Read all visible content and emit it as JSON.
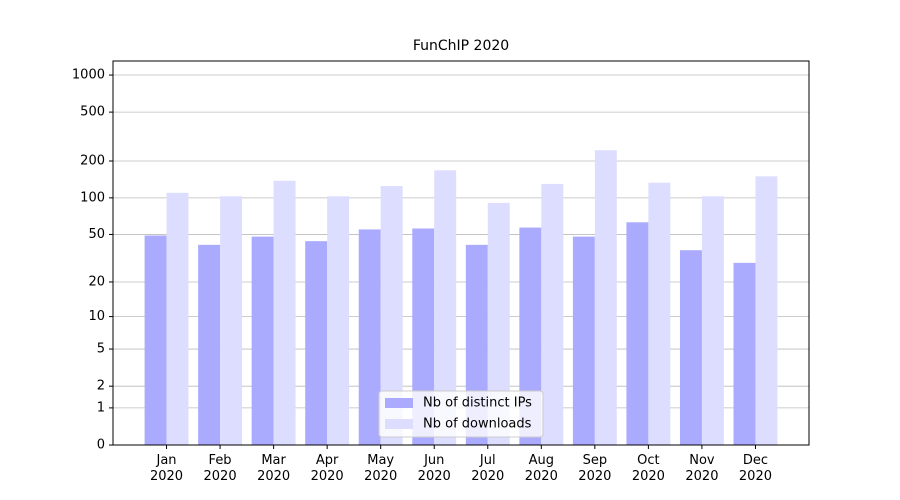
{
  "chart_data": {
    "type": "bar",
    "title": "FunChIP 2020",
    "categories": [
      "Jan\n2020",
      "Feb\n2020",
      "Mar\n2020",
      "Apr\n2020",
      "May\n2020",
      "Jun\n2020",
      "Jul\n2020",
      "Aug\n2020",
      "Sep\n2020",
      "Oct\n2020",
      "Nov\n2020",
      "Dec\n2020"
    ],
    "series": [
      {
        "name": "Nb of distinct IPs",
        "color": "#aaaaff",
        "values": [
          49,
          41,
          48,
          44,
          55,
          56,
          41,
          57,
          48,
          63,
          37,
          29
        ]
      },
      {
        "name": "Nb of downloads",
        "color": "#ddddff",
        "values": [
          110,
          103,
          138,
          103,
          125,
          168,
          91,
          130,
          245,
          133,
          103,
          150
        ]
      }
    ],
    "yscale": "log1p",
    "ylim": [
      0,
      1300
    ],
    "yticks": [
      0,
      1,
      2,
      5,
      10,
      20,
      50,
      100,
      200,
      500,
      1000
    ],
    "grid": true,
    "legend": "lower center"
  }
}
